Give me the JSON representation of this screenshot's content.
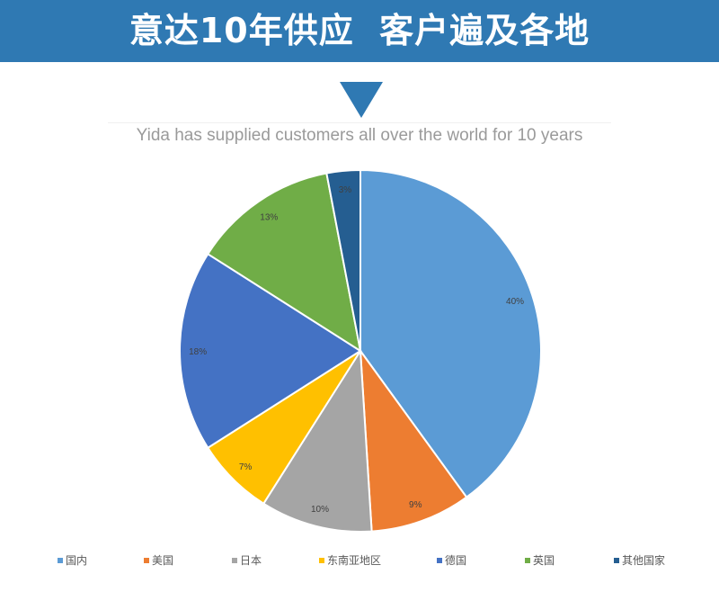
{
  "header": {
    "title": "意达10年供应  客户遍及各地",
    "subtitle": "Yida has supplied customers all over the world for 10 years"
  },
  "colors": {
    "banner": "#2f79b3"
  },
  "chart_data": {
    "type": "pie",
    "start": "12 o'clock, clockwise",
    "legend_position": "bottom",
    "categories": [
      "国内",
      "美国",
      "日本",
      "东南亚地区",
      "德国",
      "英国",
      "其他国家"
    ],
    "values": [
      40,
      9,
      10,
      7,
      18,
      13,
      3
    ],
    "labels": [
      "40%",
      "9%",
      "10%",
      "7%",
      "18%",
      "13%",
      "3%"
    ],
    "colors": [
      "#5b9bd5",
      "#ed7d31",
      "#a5a5a5",
      "#ffc000",
      "#4472c4",
      "#70ad47",
      "#255e91"
    ]
  }
}
